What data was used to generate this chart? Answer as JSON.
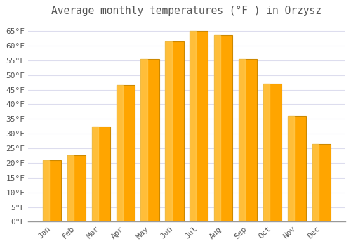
{
  "title": "Average monthly temperatures (°F ) in Orzysz",
  "months": [
    "Jan",
    "Feb",
    "Mar",
    "Apr",
    "May",
    "Jun",
    "Jul",
    "Aug",
    "Sep",
    "Oct",
    "Nov",
    "Dec"
  ],
  "values": [
    21.0,
    22.5,
    32.5,
    46.5,
    55.5,
    61.5,
    65.0,
    63.5,
    55.5,
    47.0,
    36.0,
    26.5
  ],
  "bar_color": "#FFA500",
  "bar_edge_color": "#CC8800",
  "background_color": "#FFFFFF",
  "plot_bg_color": "#FFFFFF",
  "grid_color": "#DDDDEE",
  "text_color": "#555555",
  "ylim": [
    0,
    68
  ],
  "yticks": [
    0,
    5,
    10,
    15,
    20,
    25,
    30,
    35,
    40,
    45,
    50,
    55,
    60,
    65
  ],
  "ytick_labels": [
    "0°F",
    "5°F",
    "10°F",
    "15°F",
    "20°F",
    "25°F",
    "30°F",
    "35°F",
    "40°F",
    "45°F",
    "50°F",
    "55°F",
    "60°F",
    "65°F"
  ],
  "title_fontsize": 10.5,
  "tick_fontsize": 8,
  "xlabel_rotation": 45,
  "figsize": [
    5.0,
    3.5
  ],
  "dpi": 100
}
